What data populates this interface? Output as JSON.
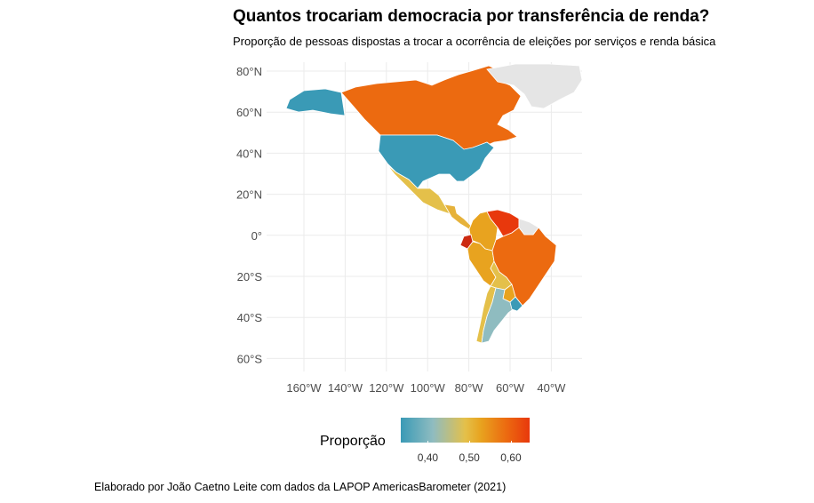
{
  "title": "Quantos trocariam democracia por transferência de renda?",
  "subtitle": "Proporção de pessoas dispostas a trocar a ocorrência de eleições por serviços e renda básica",
  "caption": "Elaborado por João Caetno Leite com dados da LAPOP AmericasBarometer (2021)",
  "legend": {
    "title": "Proporção",
    "ticks": [
      "0,40",
      "0,50",
      "0,60"
    ],
    "tick_values": [
      0.4,
      0.5,
      0.6
    ],
    "range": [
      0.335,
      0.645
    ],
    "colors": [
      "#3a9ab6",
      "#8fbcc0",
      "#e4c04a",
      "#e8a31f",
      "#ec6a10",
      "#e8380c"
    ]
  },
  "map": {
    "lat_ticks": [
      {
        "value": 80,
        "label": "80°N"
      },
      {
        "value": 60,
        "label": "60°N"
      },
      {
        "value": 40,
        "label": "40°N"
      },
      {
        "value": 20,
        "label": "20°N"
      },
      {
        "value": 0,
        "label": "0°"
      },
      {
        "value": -20,
        "label": "20°S"
      },
      {
        "value": -40,
        "label": "40°S"
      },
      {
        "value": -60,
        "label": "60°S"
      }
    ],
    "lon_ticks": [
      {
        "value": -160,
        "label": "160°W"
      },
      {
        "value": -140,
        "label": "140°W"
      },
      {
        "value": -120,
        "label": "120°W"
      },
      {
        "value": -100,
        "label": "100°W"
      },
      {
        "value": -80,
        "label": "80°W"
      },
      {
        "value": -60,
        "label": "60°W"
      },
      {
        "value": -40,
        "label": "40°W"
      }
    ],
    "no_data_color": "#e5e5e5",
    "regions": [
      {
        "name": "Canada",
        "color": "#ec6a10"
      },
      {
        "name": "United States",
        "color": "#3a9ab6"
      },
      {
        "name": "Mexico",
        "color": "#e4c04a"
      },
      {
        "name": "Central America",
        "color": "#e6b23a"
      },
      {
        "name": "Colombia",
        "color": "#e8a31f"
      },
      {
        "name": "Venezuela",
        "color": "#e8380c"
      },
      {
        "name": "Ecuador",
        "color": "#cc2a10"
      },
      {
        "name": "Peru",
        "color": "#e8a31f"
      },
      {
        "name": "Bolivia",
        "color": "#e4c04a"
      },
      {
        "name": "Brazil",
        "color": "#ec6a10"
      },
      {
        "name": "Paraguay",
        "color": "#e8a31f"
      },
      {
        "name": "Chile",
        "color": "#e4c04a"
      },
      {
        "name": "Argentina",
        "color": "#8fbcc0"
      },
      {
        "name": "Uruguay",
        "color": "#3a9ab6"
      },
      {
        "name": "Greenland",
        "color": "#e5e5e5"
      },
      {
        "name": "Guianas",
        "color": "#e5e5e5"
      }
    ]
  }
}
